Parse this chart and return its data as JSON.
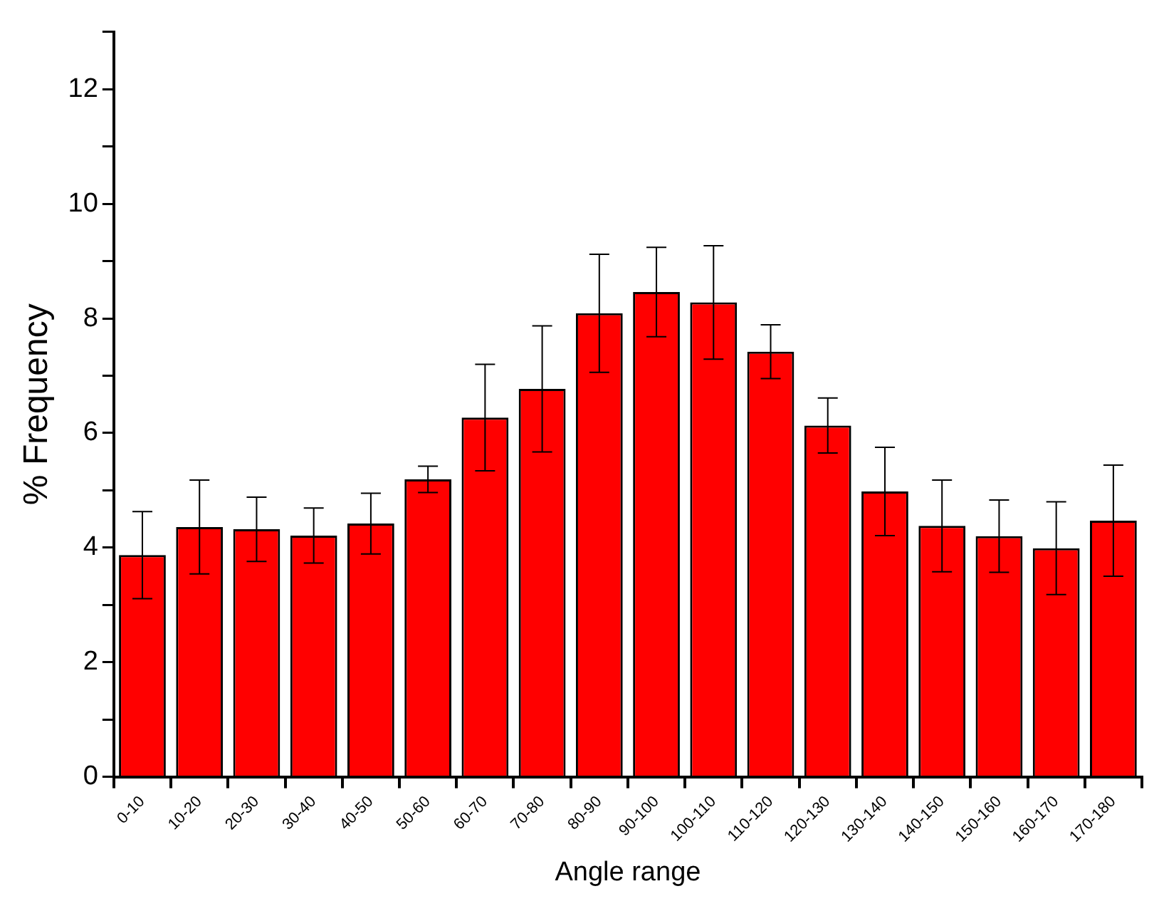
{
  "chart_data": {
    "type": "bar",
    "xlabel": "Angle range",
    "ylabel": "% Frequency",
    "categories": [
      "0-10",
      "10-20",
      "20-30",
      "30-40",
      "40-50",
      "50-60",
      "60-70",
      "70-80",
      "80-90",
      "90-100",
      "100-110",
      "110-120",
      "120-130",
      "130-140",
      "140-150",
      "150-160",
      "160-170",
      "170-180"
    ],
    "values": [
      3.87,
      4.36,
      4.32,
      4.21,
      4.42,
      5.19,
      6.27,
      6.77,
      8.09,
      8.46,
      8.28,
      7.42,
      6.13,
      4.98,
      4.38,
      4.2,
      3.99,
      4.47
    ],
    "errors": [
      0.76,
      0.82,
      0.56,
      0.48,
      0.53,
      0.23,
      0.93,
      1.1,
      1.03,
      0.78,
      0.99,
      0.47,
      0.48,
      0.77,
      0.8,
      0.63,
      0.81,
      0.97
    ],
    "color": "#ff0000",
    "ylim": [
      0,
      13
    ],
    "yticks": [
      0,
      {
        "value": 1,
        "label": null
      },
      2,
      {
        "value": 3,
        "label": null
      },
      4,
      {
        "value": 5,
        "label": null
      },
      6,
      {
        "value": 7,
        "label": null
      },
      8,
      {
        "value": 9,
        "label": null
      },
      10,
      {
        "value": 11,
        "label": null
      },
      12,
      {
        "value": 13,
        "label": null
      }
    ],
    "grid": false,
    "legend": false
  }
}
